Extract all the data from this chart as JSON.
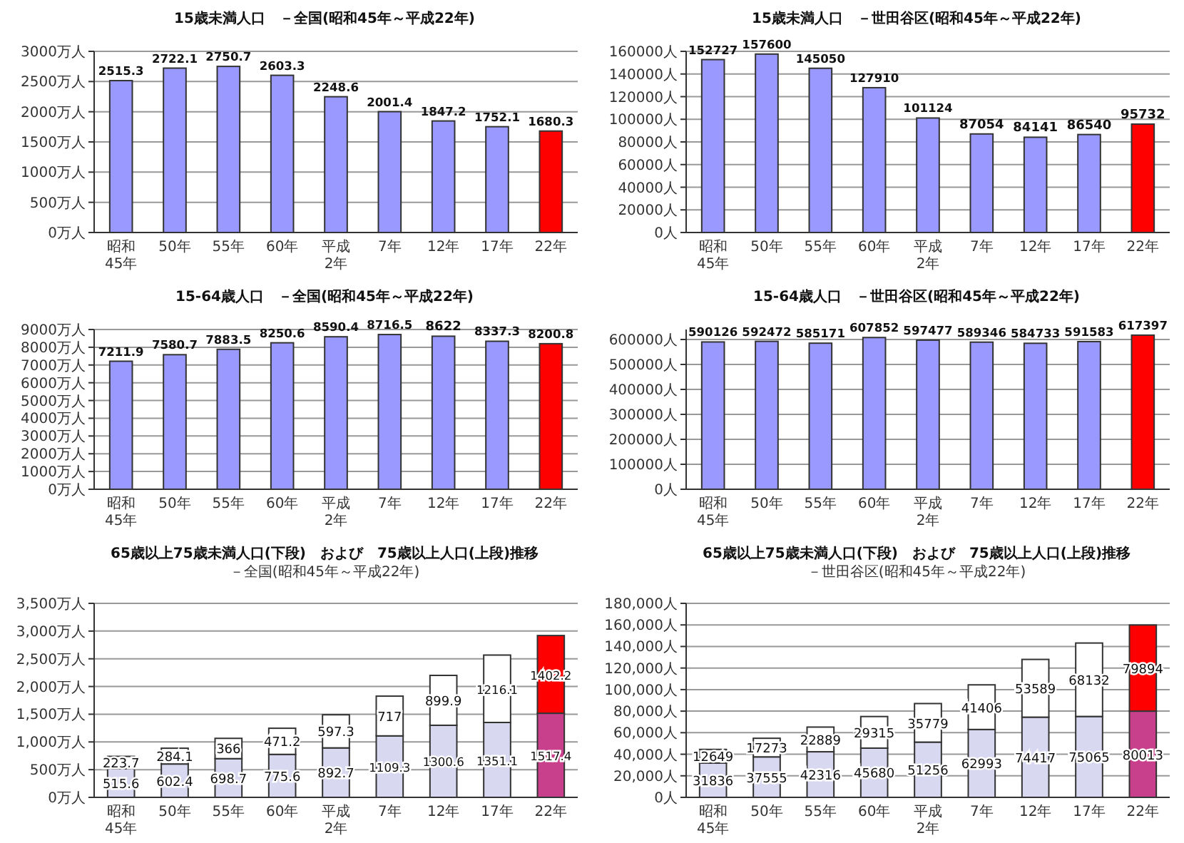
{
  "chart_data": [
    {
      "type": "bar",
      "title": "15歳未満人口　－全国(昭和45年～平成22年)",
      "categories": [
        "昭和\n45年",
        "50年",
        "55年",
        "60年",
        "平成\n2年",
        "7年",
        "12年",
        "17年",
        "22年"
      ],
      "values": [
        2515.3,
        2722.1,
        2750.7,
        2603.3,
        2248.6,
        2001.4,
        1847.2,
        1752.1,
        1680.3
      ],
      "colors": [
        "#9999ff",
        "#9999ff",
        "#9999ff",
        "#9999ff",
        "#9999ff",
        "#9999ff",
        "#9999ff",
        "#9999ff",
        "#ff0000"
      ],
      "ylim": [
        0,
        3000
      ],
      "yticks": [
        {
          "value": 0,
          "label": "0万人"
        },
        {
          "value": 500,
          "label": "500万人"
        },
        {
          "value": 1000,
          "label": "1000万人"
        },
        {
          "value": 1500,
          "label": "1500万人"
        },
        {
          "value": 2000,
          "label": "2000万人"
        },
        {
          "value": 2500,
          "label": "2500万人"
        },
        {
          "value": 3000,
          "label": "3000万人"
        }
      ],
      "grid": "y",
      "data_labels": true
    },
    {
      "type": "bar",
      "title": "15歳未満人口　－世田谷区(昭和45年～平成22年)",
      "categories": [
        "昭和\n45年",
        "50年",
        "55年",
        "60年",
        "平成\n2年",
        "7年",
        "12年",
        "17年",
        "22年"
      ],
      "values": [
        152727,
        157600,
        145050,
        127910,
        101124,
        87054,
        84141,
        86540,
        95732
      ],
      "colors": [
        "#9999ff",
        "#9999ff",
        "#9999ff",
        "#9999ff",
        "#9999ff",
        "#9999ff",
        "#9999ff",
        "#9999ff",
        "#ff0000"
      ],
      "ylim": [
        0,
        160000
      ],
      "yticks": [
        {
          "value": 0,
          "label": "0人"
        },
        {
          "value": 20000,
          "label": "20000人"
        },
        {
          "value": 40000,
          "label": "40000人"
        },
        {
          "value": 60000,
          "label": "60000人"
        },
        {
          "value": 80000,
          "label": "80000人"
        },
        {
          "value": 100000,
          "label": "100000人"
        },
        {
          "value": 120000,
          "label": "120000人"
        },
        {
          "value": 140000,
          "label": "140000人"
        },
        {
          "value": 160000,
          "label": "160000人"
        }
      ],
      "grid": "y",
      "data_labels": true
    },
    {
      "type": "bar",
      "title": "15-64歳人口　－全国(昭和45年～平成22年)",
      "categories": [
        "昭和\n45年",
        "50年",
        "55年",
        "60年",
        "平成\n2年",
        "7年",
        "12年",
        "17年",
        "22年"
      ],
      "values": [
        7211.9,
        7580.7,
        7883.5,
        8250.6,
        8590.4,
        8716.5,
        8622,
        8337.3,
        8200.8
      ],
      "colors": [
        "#9999ff",
        "#9999ff",
        "#9999ff",
        "#9999ff",
        "#9999ff",
        "#9999ff",
        "#9999ff",
        "#9999ff",
        "#ff0000"
      ],
      "ylim": [
        0,
        9000
      ],
      "yticks": [
        {
          "value": 0,
          "label": "0万人"
        },
        {
          "value": 1000,
          "label": "1000万人"
        },
        {
          "value": 2000,
          "label": "2000万人"
        },
        {
          "value": 3000,
          "label": "3000万人"
        },
        {
          "value": 4000,
          "label": "4000万人"
        },
        {
          "value": 5000,
          "label": "5000万人"
        },
        {
          "value": 6000,
          "label": "6000万人"
        },
        {
          "value": 7000,
          "label": "7000万人"
        },
        {
          "value": 8000,
          "label": "8000万人"
        },
        {
          "value": 9000,
          "label": "9000万人"
        }
      ],
      "grid": "y",
      "data_labels": true
    },
    {
      "type": "bar",
      "title": "15-64歳人口　－世田谷区(昭和45年～平成22年)",
      "categories": [
        "昭和\n45年",
        "50年",
        "55年",
        "60年",
        "平成\n2年",
        "7年",
        "12年",
        "17年",
        "22年"
      ],
      "values": [
        590126,
        592472,
        585171,
        607852,
        597477,
        589346,
        584733,
        591583,
        617397
      ],
      "colors": [
        "#9999ff",
        "#9999ff",
        "#9999ff",
        "#9999ff",
        "#9999ff",
        "#9999ff",
        "#9999ff",
        "#9999ff",
        "#ff0000"
      ],
      "ylim": [
        0,
        640000
      ],
      "yticks": [
        {
          "value": 0,
          "label": "0人"
        },
        {
          "value": 100000,
          "label": "100000人"
        },
        {
          "value": 200000,
          "label": "200000人"
        },
        {
          "value": 300000,
          "label": "300000人"
        },
        {
          "value": 400000,
          "label": "400000人"
        },
        {
          "value": 500000,
          "label": "500000人"
        },
        {
          "value": 600000,
          "label": "600000人"
        }
      ],
      "grid": "y",
      "data_labels": true
    },
    {
      "type": "bar",
      "stacked": true,
      "title": "65歳以上75歳未満人口(下段)　および　75歳以上人口(上段)推移",
      "subtitle": "－全国(昭和45年～平成22年)",
      "categories": [
        "昭和\n45年",
        "50年",
        "55年",
        "60年",
        "平成\n2年",
        "7年",
        "12年",
        "17年",
        "22年"
      ],
      "series": [
        {
          "colors": [
            "#d8d8f0",
            "#d8d8f0",
            "#d8d8f0",
            "#d8d8f0",
            "#d8d8f0",
            "#d8d8f0",
            "#d8d8f0",
            "#d8d8f0",
            "#c8408c"
          ],
          "values": [
            515.6,
            602.4,
            698.7,
            775.6,
            892.7,
            1109.3,
            1300.6,
            1351.1,
            1517.4
          ]
        },
        {
          "colors": [
            "#ffffff",
            "#ffffff",
            "#ffffff",
            "#ffffff",
            "#ffffff",
            "#ffffff",
            "#ffffff",
            "#ffffff",
            "#ff0000"
          ],
          "values": [
            223.7,
            284.1,
            366,
            471.2,
            597.3,
            717,
            899.9,
            1216.1,
            1402.2
          ]
        }
      ],
      "ylim": [
        0,
        3500
      ],
      "yticks": [
        {
          "value": 0,
          "label": "0万人"
        },
        {
          "value": 500,
          "label": "500万人"
        },
        {
          "value": 1000,
          "label": "1,000万人"
        },
        {
          "value": 1500,
          "label": "1,500万人"
        },
        {
          "value": 2000,
          "label": "2,000万人"
        },
        {
          "value": 2500,
          "label": "2,500万人"
        },
        {
          "value": 3000,
          "label": "3,000万人"
        },
        {
          "value": 3500,
          "label": "3,500万人"
        }
      ],
      "grid": "y",
      "data_labels": true
    },
    {
      "type": "bar",
      "stacked": true,
      "title": "65歳以上75歳未満人口(下段)　および　75歳以上人口(上段)推移",
      "subtitle": "－世田谷区(昭和45年～平成22年)",
      "categories": [
        "昭和\n45年",
        "50年",
        "55年",
        "60年",
        "平成\n2年",
        "7年",
        "12年",
        "17年",
        "22年"
      ],
      "series": [
        {
          "colors": [
            "#d8d8f0",
            "#d8d8f0",
            "#d8d8f0",
            "#d8d8f0",
            "#d8d8f0",
            "#d8d8f0",
            "#d8d8f0",
            "#d8d8f0",
            "#c8408c"
          ],
          "values": [
            31836,
            37555,
            42316,
            45680,
            51256,
            62993,
            74417,
            75065,
            80013
          ]
        },
        {
          "colors": [
            "#ffffff",
            "#ffffff",
            "#ffffff",
            "#ffffff",
            "#ffffff",
            "#ffffff",
            "#ffffff",
            "#ffffff",
            "#ff0000"
          ],
          "values": [
            12649,
            17273,
            22889,
            29315,
            35779,
            41406,
            53589,
            68132,
            79894
          ]
        }
      ],
      "ylim": [
        0,
        180000
      ],
      "yticks": [
        {
          "value": 0,
          "label": "0人"
        },
        {
          "value": 20000,
          "label": "20,000人"
        },
        {
          "value": 40000,
          "label": "40,000人"
        },
        {
          "value": 60000,
          "label": "60,000人"
        },
        {
          "value": 80000,
          "label": "80,000人"
        },
        {
          "value": 100000,
          "label": "100,000人"
        },
        {
          "value": 120000,
          "label": "120,000人"
        },
        {
          "value": 140000,
          "label": "140,000人"
        },
        {
          "value": 160000,
          "label": "160,000人"
        },
        {
          "value": 180000,
          "label": "180,000人"
        }
      ],
      "grid": "y",
      "data_labels": true
    }
  ]
}
